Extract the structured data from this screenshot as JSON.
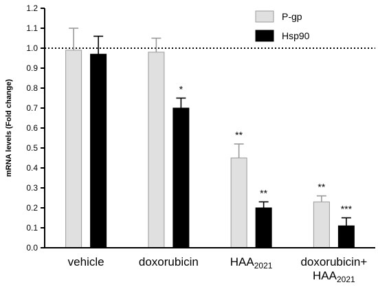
{
  "chart_data": {
    "type": "bar",
    "ylabel": "mRNA levels (Fold change)",
    "ylim": [
      0,
      1.2
    ],
    "yticks": [
      "0.0",
      "0.1",
      "0.2",
      "0.3",
      "0.4",
      "0.5",
      "0.6",
      "0.7",
      "0.8",
      "0.9",
      "1.0",
      "1.1",
      "1.2"
    ],
    "reference_line": 1.0,
    "categories": [
      {
        "label": "vehicle",
        "sub": "",
        "line2": "",
        "line2_sub": ""
      },
      {
        "label": "doxorubicin",
        "sub": "",
        "line2": "",
        "line2_sub": ""
      },
      {
        "label": "HAA",
        "sub": "2021",
        "line2": "",
        "line2_sub": ""
      },
      {
        "label": "doxorubicin+",
        "sub": "",
        "line2": "HAA",
        "line2_sub": "2021"
      }
    ],
    "series": [
      {
        "name": "P-gp",
        "color": "#e0e0e0",
        "stroke": "#9a9a9a",
        "values": [
          0.99,
          0.98,
          0.45,
          0.23
        ],
        "errors": [
          0.11,
          0.07,
          0.07,
          0.03
        ],
        "significance": [
          "",
          "",
          "**",
          "**"
        ]
      },
      {
        "name": "Hsp90",
        "color": "#000000",
        "stroke": "#000000",
        "values": [
          0.97,
          0.7,
          0.2,
          0.11
        ],
        "errors": [
          0.09,
          0.05,
          0.03,
          0.04
        ],
        "significance": [
          "",
          "*",
          "**",
          "***"
        ]
      }
    ],
    "legend_position": "top-right"
  }
}
